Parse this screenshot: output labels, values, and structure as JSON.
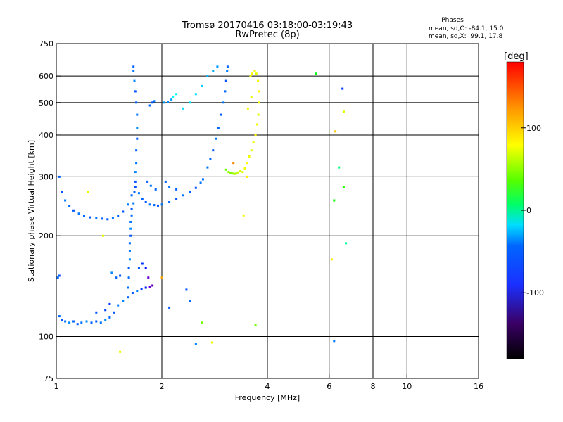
{
  "chart_data": {
    "type": "scatter",
    "title": "Tromsø 20170416 03:18:00-03:19:43",
    "subtitle": "RwPretec (8p)",
    "xlabel": "Frequency [MHz]",
    "ylabel": "Stationary phase Virtual Height [km]",
    "x_scale": "log",
    "y_scale": "log",
    "xlim": [
      1,
      16
    ],
    "ylim": [
      75,
      750
    ],
    "x_ticks": [
      1,
      2,
      4,
      6,
      8,
      10,
      16
    ],
    "x_tick_labels": [
      "1",
      "2",
      "4",
      "6",
      "8",
      "10",
      "16"
    ],
    "y_ticks": [
      75,
      100,
      200,
      300,
      400,
      500,
      600,
      750
    ],
    "y_tick_labels": [
      "75",
      "100",
      "200",
      "300",
      "400",
      "500",
      "600",
      "750"
    ],
    "grid": true,
    "colorbar": {
      "label": "[deg]",
      "ticks": [
        100,
        0,
        -100
      ],
      "tick_labels": [
        "100",
        "0",
        "-100"
      ],
      "range": [
        -180,
        180
      ]
    },
    "stats": {
      "header": "Phases",
      "line_o": "mean, sd,O: -84.1, 15.0",
      "line_x": "mean, sd,X:  99.1, 17.8"
    },
    "series": [
      {
        "mode": "O",
        "points": [
          [
            1.02,
            115,
            -95
          ],
          [
            1.04,
            112,
            -100
          ],
          [
            1.06,
            111,
            -90
          ],
          [
            1.09,
            110,
            -85
          ],
          [
            1.12,
            111,
            -95
          ],
          [
            1.15,
            109,
            -100
          ],
          [
            1.18,
            110,
            -90
          ],
          [
            1.22,
            111,
            -85
          ],
          [
            1.26,
            110,
            -95
          ],
          [
            1.3,
            111,
            -100
          ],
          [
            1.34,
            110,
            -90
          ],
          [
            1.38,
            112,
            -85
          ],
          [
            1.42,
            114,
            -95
          ],
          [
            1.46,
            118,
            -100
          ],
          [
            1.5,
            124,
            -90
          ],
          [
            1.55,
            128,
            -85
          ],
          [
            1.6,
            131,
            -95
          ],
          [
            1.65,
            135,
            -100
          ],
          [
            1.7,
            137,
            -90
          ],
          [
            1.75,
            139,
            -110
          ],
          [
            1.8,
            140,
            -120
          ],
          [
            1.85,
            141,
            -130
          ],
          [
            1.88,
            142,
            -140
          ],
          [
            1.6,
            140,
            -90
          ],
          [
            1.61,
            150,
            -95
          ],
          [
            1.61,
            160,
            -100
          ],
          [
            1.62,
            170,
            -85
          ],
          [
            1.62,
            180,
            -90
          ],
          [
            1.62,
            190,
            -95
          ],
          [
            1.63,
            200,
            -100
          ],
          [
            1.63,
            210,
            -85
          ],
          [
            1.63,
            220,
            -90
          ],
          [
            1.64,
            230,
            -95
          ],
          [
            1.64,
            240,
            -100
          ],
          [
            1.66,
            250,
            -90
          ],
          [
            1.67,
            270,
            -95
          ],
          [
            1.68,
            290,
            -100
          ],
          [
            1.68,
            310,
            -85
          ],
          [
            1.69,
            330,
            -90
          ],
          [
            1.69,
            360,
            -95
          ],
          [
            1.7,
            390,
            -100
          ],
          [
            1.7,
            420,
            -85
          ],
          [
            1.7,
            460,
            -90
          ],
          [
            1.69,
            500,
            -95
          ],
          [
            1.68,
            540,
            -100
          ],
          [
            1.67,
            580,
            -85
          ],
          [
            1.66,
            620,
            -90
          ],
          [
            1.66,
            640,
            -95
          ],
          [
            1.72,
            160,
            -100
          ],
          [
            1.76,
            165,
            -110
          ],
          [
            1.8,
            160,
            -120
          ],
          [
            1.83,
            150,
            -130
          ],
          [
            1.01,
            150,
            -95
          ],
          [
            1.02,
            152,
            -100
          ],
          [
            1.02,
            300,
            -95
          ],
          [
            1.04,
            270,
            -100
          ],
          [
            1.06,
            255,
            -90
          ],
          [
            1.09,
            245,
            -95
          ],
          [
            1.12,
            238,
            -100
          ],
          [
            1.16,
            233,
            -90
          ],
          [
            1.2,
            229,
            -95
          ],
          [
            1.25,
            227,
            -100
          ],
          [
            1.3,
            226,
            -90
          ],
          [
            1.35,
            225,
            -95
          ],
          [
            1.4,
            224,
            -100
          ],
          [
            1.45,
            226,
            -90
          ],
          [
            1.5,
            229,
            -95
          ],
          [
            1.55,
            236,
            -100
          ],
          [
            1.6,
            248,
            -90
          ],
          [
            1.64,
            264,
            -95
          ],
          [
            1.68,
            280,
            -100
          ],
          [
            1.72,
            268,
            -90
          ],
          [
            1.76,
            258,
            -95
          ],
          [
            1.8,
            252,
            -100
          ],
          [
            1.85,
            248,
            -90
          ],
          [
            1.9,
            247,
            -95
          ],
          [
            1.95,
            246,
            -100
          ],
          [
            2.0,
            248,
            -90
          ],
          [
            2.1,
            252,
            -95
          ],
          [
            2.2,
            258,
            -100
          ],
          [
            2.3,
            264,
            -90
          ],
          [
            2.4,
            270,
            -95
          ],
          [
            2.5,
            278,
            -100
          ],
          [
            2.58,
            288,
            -90
          ],
          [
            2.62,
            295,
            -95
          ],
          [
            2.05,
            290,
            -100
          ],
          [
            2.1,
            280,
            -90
          ],
          [
            2.2,
            275,
            -95
          ],
          [
            1.82,
            290,
            -100
          ],
          [
            1.86,
            282,
            -90
          ],
          [
            1.92,
            275,
            -95
          ],
          [
            1.85,
            490,
            -95
          ],
          [
            1.88,
            500,
            -100
          ],
          [
            1.9,
            505,
            -90
          ],
          [
            2.03,
            500,
            -80
          ],
          [
            2.08,
            502,
            -85
          ],
          [
            2.13,
            510,
            -80
          ],
          [
            1.44,
            155,
            -85
          ],
          [
            1.48,
            150,
            -95
          ],
          [
            1.52,
            152,
            -100
          ],
          [
            2.7,
            320,
            -90
          ],
          [
            2.75,
            340,
            -95
          ],
          [
            2.8,
            360,
            -100
          ],
          [
            2.85,
            390,
            -90
          ],
          [
            2.9,
            420,
            -95
          ],
          [
            2.95,
            460,
            -100
          ],
          [
            3.0,
            500,
            -90
          ],
          [
            3.03,
            540,
            -95
          ],
          [
            3.05,
            580,
            -100
          ],
          [
            3.07,
            620,
            -90
          ],
          [
            3.08,
            640,
            -95
          ],
          [
            2.3,
            480,
            -60
          ],
          [
            2.4,
            500,
            -55
          ],
          [
            2.5,
            530,
            -60
          ],
          [
            2.6,
            560,
            -65
          ],
          [
            2.7,
            600,
            -70
          ],
          [
            2.8,
            620,
            -75
          ],
          [
            2.88,
            640,
            -80
          ],
          [
            2.2,
            530,
            -50
          ],
          [
            2.15,
            520,
            -45
          ],
          [
            1.42,
            125,
            -110
          ],
          [
            1.38,
            120,
            -105
          ],
          [
            1.3,
            118,
            -100
          ],
          [
            2.35,
            138,
            -100
          ],
          [
            2.4,
            128,
            -95
          ],
          [
            2.1,
            122,
            -100
          ],
          [
            2.5,
            95,
            -90
          ]
        ]
      },
      {
        "mode": "X",
        "points": [
          [
            3.4,
            310,
            95
          ],
          [
            3.45,
            318,
            100
          ],
          [
            3.5,
            330,
            105
          ],
          [
            3.55,
            345,
            100
          ],
          [
            3.6,
            360,
            95
          ],
          [
            3.65,
            380,
            100
          ],
          [
            3.7,
            400,
            105
          ],
          [
            3.74,
            430,
            100
          ],
          [
            3.77,
            460,
            95
          ],
          [
            3.78,
            500,
            100
          ],
          [
            3.78,
            540,
            105
          ],
          [
            3.76,
            580,
            100
          ],
          [
            3.72,
            610,
            95
          ],
          [
            3.68,
            620,
            100
          ],
          [
            3.62,
            610,
            105
          ],
          [
            3.58,
            600,
            100
          ],
          [
            3.1,
            310,
            70
          ],
          [
            3.14,
            308,
            65
          ],
          [
            3.18,
            307,
            70
          ],
          [
            3.22,
            306,
            75
          ],
          [
            3.26,
            307,
            80
          ],
          [
            3.3,
            309,
            85
          ],
          [
            3.35,
            312,
            90
          ],
          [
            3.05,
            315,
            60
          ],
          [
            3.52,
            480,
            100
          ],
          [
            3.6,
            520,
            95
          ],
          [
            6.2,
            255,
            30
          ],
          [
            5.5,
            610,
            20
          ],
          [
            6.6,
            470,
            95
          ],
          [
            3.5,
            300,
            110
          ],
          [
            3.7,
            108,
            60
          ],
          [
            6.6,
            280,
            40
          ],
          [
            6.4,
            320,
            -10
          ],
          [
            6.1,
            170,
            110
          ],
          [
            6.7,
            190,
            -20
          ],
          [
            6.55,
            550,
            -110
          ],
          [
            6.2,
            97,
            -90
          ],
          [
            1.23,
            270,
            100
          ],
          [
            1.36,
            200,
            95
          ],
          [
            3.42,
            230,
            100
          ],
          [
            1.52,
            90,
            100
          ],
          [
            2.78,
            96,
            100
          ],
          [
            2.6,
            110,
            60
          ],
          [
            6.25,
            410,
            120
          ],
          [
            2.0,
            150,
            130
          ],
          [
            3.2,
            330,
            140
          ]
        ]
      }
    ]
  }
}
